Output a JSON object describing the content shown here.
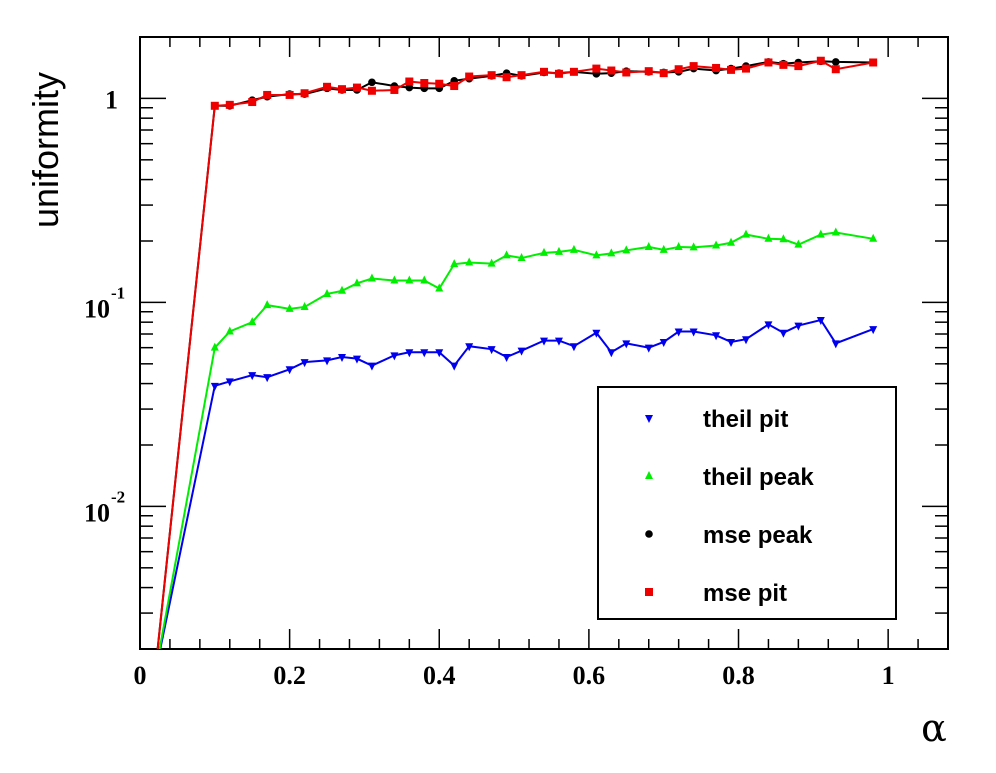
{
  "chart_data": {
    "type": "line",
    "title": "",
    "xlabel": "α",
    "ylabel": "uniformity",
    "xlim": [
      0,
      1.08
    ],
    "ylim": [
      0.002,
      2.0
    ],
    "yscale": "log",
    "grid": false,
    "legend_position": "bottom-right",
    "x_ticks": [
      {
        "value": 0,
        "label": "0"
      },
      {
        "value": 0.2,
        "label": "0.2"
      },
      {
        "value": 0.4,
        "label": "0.4"
      },
      {
        "value": 0.6,
        "label": "0.6"
      },
      {
        "value": 0.8,
        "label": "0.8"
      },
      {
        "value": 1,
        "label": "1"
      }
    ],
    "y_ticks": [
      {
        "value": 1,
        "base": "1",
        "exp": ""
      },
      {
        "value": 0.1,
        "base": "10",
        "exp": "-1"
      },
      {
        "value": 0.01,
        "base": "10",
        "exp": "-2"
      }
    ],
    "x": [
      0.02,
      0.1,
      0.12,
      0.15,
      0.17,
      0.2,
      0.22,
      0.25,
      0.27,
      0.29,
      0.31,
      0.34,
      0.36,
      0.38,
      0.4,
      0.42,
      0.44,
      0.47,
      0.49,
      0.51,
      0.54,
      0.56,
      0.58,
      0.61,
      0.63,
      0.65,
      0.68,
      0.7,
      0.72,
      0.74,
      0.77,
      0.79,
      0.81,
      0.84,
      0.86,
      0.88,
      0.91,
      0.93,
      0.98
    ],
    "series": [
      {
        "name": "theil pit",
        "color": "#0000ee",
        "marker": "triangle-down",
        "values": [
          0.0015,
          0.039,
          0.041,
          0.044,
          0.043,
          0.047,
          0.051,
          0.052,
          0.054,
          0.053,
          0.049,
          0.055,
          0.057,
          0.057,
          0.057,
          0.049,
          0.061,
          0.059,
          0.054,
          0.058,
          0.065,
          0.065,
          0.061,
          0.071,
          0.057,
          0.063,
          0.06,
          0.064,
          0.072,
          0.072,
          0.069,
          0.064,
          0.066,
          0.078,
          0.071,
          0.077,
          0.082,
          0.063,
          0.074
        ]
      },
      {
        "name": "theil peak",
        "color": "#00ee00",
        "marker": "triangle-up",
        "values": [
          0.0015,
          0.06,
          0.072,
          0.08,
          0.097,
          0.093,
          0.095,
          0.11,
          0.114,
          0.124,
          0.131,
          0.128,
          0.128,
          0.128,
          0.117,
          0.154,
          0.157,
          0.155,
          0.17,
          0.165,
          0.175,
          0.177,
          0.181,
          0.17,
          0.174,
          0.18,
          0.187,
          0.181,
          0.187,
          0.186,
          0.19,
          0.196,
          0.215,
          0.205,
          0.204,
          0.192,
          0.215,
          0.22,
          0.205
        ]
      },
      {
        "name": "mse peak",
        "color": "#000000",
        "marker": "circle",
        "values": [
          0.0015,
          0.92,
          0.92,
          0.98,
          1.02,
          1.05,
          1.05,
          1.12,
          1.1,
          1.1,
          1.2,
          1.15,
          1.13,
          1.12,
          1.12,
          1.22,
          1.25,
          1.29,
          1.33,
          1.29,
          1.34,
          1.33,
          1.35,
          1.32,
          1.33,
          1.36,
          1.35,
          1.34,
          1.35,
          1.4,
          1.37,
          1.4,
          1.44,
          1.51,
          1.48,
          1.5,
          1.52,
          1.51,
          1.5
        ]
      },
      {
        "name": "mse pit",
        "color": "#ee0000",
        "marker": "square",
        "values": [
          0.0015,
          0.92,
          0.93,
          0.96,
          1.04,
          1.04,
          1.06,
          1.14,
          1.11,
          1.13,
          1.09,
          1.1,
          1.21,
          1.19,
          1.18,
          1.15,
          1.28,
          1.3,
          1.27,
          1.3,
          1.35,
          1.32,
          1.35,
          1.4,
          1.37,
          1.34,
          1.36,
          1.33,
          1.39,
          1.44,
          1.41,
          1.38,
          1.4,
          1.5,
          1.46,
          1.44,
          1.53,
          1.39,
          1.5
        ]
      }
    ]
  }
}
